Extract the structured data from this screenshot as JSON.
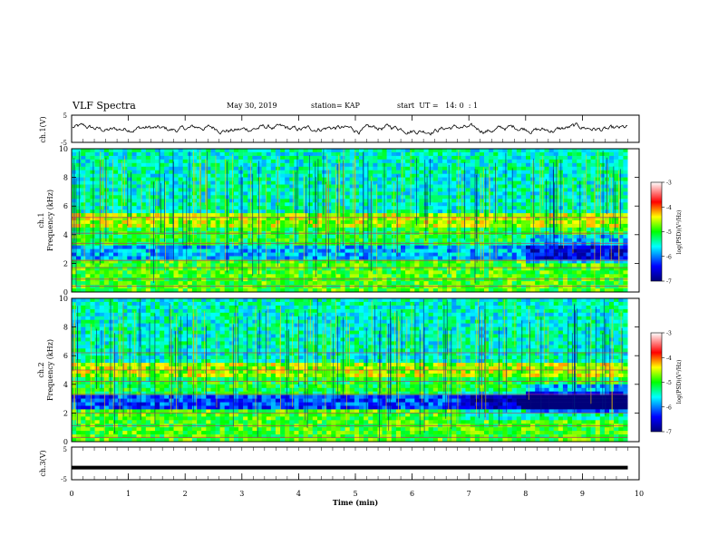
{
  "header": {
    "title": "VLF Spectra",
    "date": "May 30, 2019",
    "station": "station= KAP",
    "start_time": "start  UT =   14: 0  : 1"
  },
  "chart_data": [
    {
      "type": "line",
      "ylabel": "ch.1(V)",
      "ylim": [
        -5,
        5
      ],
      "yticks": [
        "5",
        "-5"
      ],
      "xlim": [
        0,
        10
      ],
      "description_values": "waveform amplitude around 0 V, fluctuating roughly between -2 and +2"
    },
    {
      "type": "heatmap",
      "ylabel": "ch.1",
      "ylabel2": "Frequency (kHz)",
      "ylim": [
        0,
        10
      ],
      "yticks": [
        "0",
        "2",
        "4",
        "6",
        "8",
        "10"
      ],
      "xlim": [
        0,
        9.8
      ],
      "colorbar": {
        "label": "log(PSD)(V²/Hz)",
        "ticks": [
          "-3",
          "-4",
          "-5",
          "-6",
          "-7"
        ],
        "range": [
          -7,
          -3
        ]
      }
    },
    {
      "type": "heatmap",
      "ylabel": "ch.2",
      "ylabel2": "Frequency (kHz)",
      "ylim": [
        0,
        10
      ],
      "yticks": [
        "0",
        "2",
        "4",
        "6",
        "8",
        "10"
      ],
      "xlim": [
        0,
        9.8
      ],
      "colorbar": {
        "label": "log(PSD)(V²/Hz)",
        "ticks": [
          "-3",
          "-4",
          "-5",
          "-6",
          "-7"
        ],
        "range": [
          -7,
          -3
        ]
      }
    },
    {
      "type": "line",
      "ylabel": "ch.3(V)",
      "ylim": [
        -5,
        5
      ],
      "yticks": [
        "5",
        "-5"
      ],
      "x": [
        0,
        9.8
      ],
      "y": [
        -1.3,
        -1.3
      ],
      "xlabel": "Time  (min)",
      "xlim": [
        0,
        10
      ],
      "xticks": [
        "0",
        "1",
        "2",
        "3",
        "4",
        "5",
        "6",
        "7",
        "8",
        "9",
        "10"
      ]
    }
  ]
}
